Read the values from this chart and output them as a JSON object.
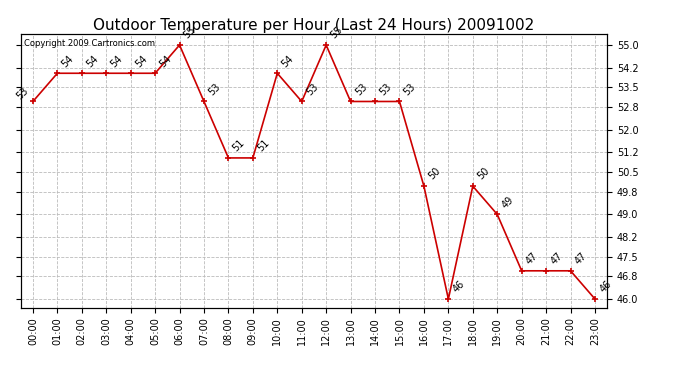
{
  "title": "Outdoor Temperature per Hour (Last 24 Hours) 20091002",
  "copyright_text": "Copyright 2009 Cartronics.com",
  "hours": [
    "00:00",
    "01:00",
    "02:00",
    "03:00",
    "04:00",
    "05:00",
    "06:00",
    "07:00",
    "08:00",
    "09:00",
    "10:00",
    "11:00",
    "12:00",
    "13:00",
    "14:00",
    "15:00",
    "16:00",
    "17:00",
    "18:00",
    "19:00",
    "20:00",
    "21:00",
    "22:00",
    "23:00"
  ],
  "temps": [
    53,
    54,
    54,
    54,
    54,
    54,
    55,
    53,
    51,
    51,
    54,
    53,
    55,
    53,
    53,
    53,
    50,
    46,
    50,
    49,
    47,
    47,
    47,
    46
  ],
  "line_color": "#cc0000",
  "marker_color": "#cc0000",
  "background_color": "#ffffff",
  "grid_color": "#bbbbbb",
  "ylim_min": 45.7,
  "ylim_max": 55.4,
  "yticks": [
    46.0,
    46.8,
    47.5,
    48.2,
    49.0,
    49.8,
    50.5,
    51.2,
    52.0,
    52.8,
    53.5,
    54.2,
    55.0
  ],
  "title_fontsize": 11,
  "tick_fontsize": 7,
  "annotation_fontsize": 7,
  "copyright_fontsize": 6
}
